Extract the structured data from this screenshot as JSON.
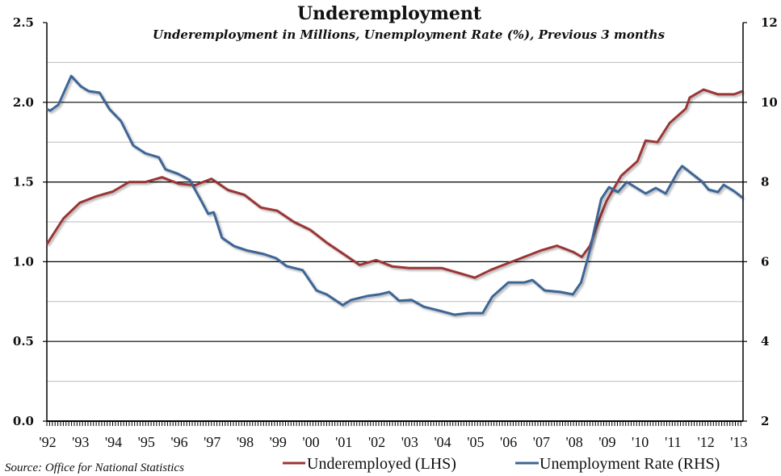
{
  "chart_data": {
    "type": "line",
    "title": "Underemployment",
    "subtitle": "Underemployment in Millions, Unemployment Rate (%), Previous 3 months",
    "source": "Source: Office for National Statistics",
    "x_range": [
      1992.0,
      2013.15
    ],
    "x_tick_labels": [
      "'92",
      "'93",
      "'94",
      "'95",
      "'96",
      "'97",
      "'98",
      "'99",
      "'00",
      "'01",
      "'02",
      "'03",
      "'04",
      "'05",
      "'06",
      "'07",
      "'08",
      "'09",
      "'10",
      "'11",
      "'12",
      "'13"
    ],
    "y_left": {
      "range": [
        0,
        2.5
      ],
      "ticks": [
        "0.0",
        "0.5",
        "1.0",
        "1.5",
        "2.0",
        "2.5"
      ]
    },
    "y_right": {
      "range": [
        2,
        12
      ],
      "ticks": [
        "2",
        "4",
        "6",
        "8",
        "10",
        "12"
      ]
    },
    "grid": true,
    "legend_position": "bottom-right",
    "series": [
      {
        "name": "Underemployed (LHS)",
        "axis": "left",
        "color": "#9b3535",
        "x": [
          1992.0,
          1992.5,
          1993.0,
          1993.5,
          1994.0,
          1994.5,
          1995.0,
          1995.5,
          1996.0,
          1996.5,
          1997.0,
          1997.5,
          1998.0,
          1998.5,
          1999.0,
          1999.5,
          2000.0,
          2000.5,
          2001.0,
          2001.5,
          2002.0,
          2002.5,
          2003.0,
          2003.5,
          2004.0,
          2004.5,
          2005.0,
          2005.5,
          2006.0,
          2006.5,
          2007.0,
          2007.5,
          2008.0,
          2008.25,
          2008.5,
          2008.75,
          2009.0,
          2009.45,
          2009.94,
          2010.19,
          2010.55,
          2010.92,
          2011.41,
          2011.53,
          2011.95,
          2012.39,
          2012.88,
          2013.13
        ],
        "values": [
          1.11,
          1.27,
          1.37,
          1.41,
          1.44,
          1.5,
          1.5,
          1.53,
          1.49,
          1.48,
          1.52,
          1.45,
          1.42,
          1.34,
          1.32,
          1.25,
          1.2,
          1.12,
          1.05,
          0.98,
          1.01,
          0.97,
          0.96,
          0.96,
          0.96,
          0.93,
          0.9,
          0.95,
          0.99,
          1.03,
          1.07,
          1.1,
          1.06,
          1.03,
          1.1,
          1.25,
          1.38,
          1.54,
          1.63,
          1.76,
          1.75,
          1.87,
          1.96,
          2.03,
          2.08,
          2.05,
          2.05,
          2.07
        ]
      },
      {
        "name": "Unemployment Rate (RHS)",
        "axis": "right",
        "color": "#3d6596",
        "x": [
          1992.0,
          1992.1,
          1992.35,
          1992.74,
          1993.03,
          1993.27,
          1993.6,
          1993.9,
          1994.25,
          1994.62,
          1994.99,
          1995.4,
          1995.6,
          1995.97,
          1996.34,
          1996.7,
          1996.9,
          1997.07,
          1997.32,
          1997.69,
          1998.05,
          1998.6,
          1998.96,
          1999.28,
          1999.77,
          2000.19,
          2000.5,
          2000.99,
          2001.24,
          2001.73,
          2002.1,
          2002.4,
          2002.7,
          2003.08,
          2003.45,
          2003.94,
          2004.38,
          2004.8,
          2005.24,
          2005.53,
          2006.02,
          2006.51,
          2006.75,
          2007.12,
          2007.6,
          2007.98,
          2008.23,
          2008.47,
          2008.84,
          2009.08,
          2009.35,
          2009.62,
          2010.19,
          2010.5,
          2010.8,
          2011.17,
          2011.3,
          2011.9,
          2012.1,
          2012.39,
          2012.56,
          2012.88,
          2013.13
        ],
        "values": [
          9.83,
          9.79,
          9.94,
          10.66,
          10.4,
          10.28,
          10.24,
          9.83,
          9.53,
          8.92,
          8.72,
          8.62,
          8.32,
          8.21,
          8.05,
          7.51,
          7.2,
          7.24,
          6.6,
          6.39,
          6.29,
          6.19,
          6.09,
          5.89,
          5.79,
          5.28,
          5.18,
          4.91,
          5.04,
          5.14,
          5.18,
          5.24,
          5.02,
          5.04,
          4.87,
          4.77,
          4.67,
          4.71,
          4.71,
          5.12,
          5.48,
          5.48,
          5.54,
          5.28,
          5.24,
          5.18,
          5.48,
          6.2,
          7.57,
          7.87,
          7.75,
          8.0,
          7.71,
          7.85,
          7.71,
          8.26,
          8.4,
          8.01,
          7.81,
          7.75,
          7.93,
          7.77,
          7.61
        ]
      }
    ]
  }
}
